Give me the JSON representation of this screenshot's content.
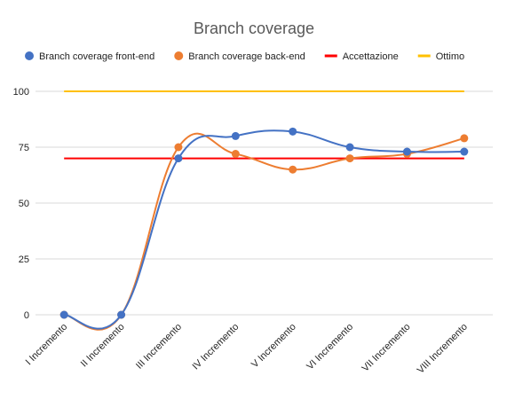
{
  "chart_data": {
    "type": "line",
    "title": "Branch coverage",
    "xlabel": "",
    "ylabel": "",
    "categories": [
      "I Incremento",
      "II Incremento",
      "III Incremento",
      "IV Incremento",
      "V Incremento",
      "VI Incremento",
      "VII Incremento",
      "VIII Incremento"
    ],
    "ylim": [
      0,
      100
    ],
    "yticks": [
      0,
      25,
      50,
      75,
      100
    ],
    "grid": true,
    "legend_position": "top",
    "series": [
      {
        "name": "Branch coverage front-end",
        "values": [
          0,
          0,
          70,
          80,
          82,
          75,
          73,
          73
        ],
        "color": "#4472C4",
        "markers": true,
        "smooth": true
      },
      {
        "name": "Branch coverage back-end",
        "values": [
          0,
          0,
          75,
          72,
          65,
          70,
          72,
          79
        ],
        "color": "#ED7D31",
        "markers": true,
        "smooth": true
      },
      {
        "name": "Accettazione",
        "values": [
          70,
          70,
          70,
          70,
          70,
          70,
          70,
          70
        ],
        "color": "#FF0000",
        "markers": false,
        "smooth": false
      },
      {
        "name": "Ottimo",
        "values": [
          100,
          100,
          100,
          100,
          100,
          100,
          100,
          100
        ],
        "color": "#FFC000",
        "markers": false,
        "smooth": false
      }
    ]
  }
}
